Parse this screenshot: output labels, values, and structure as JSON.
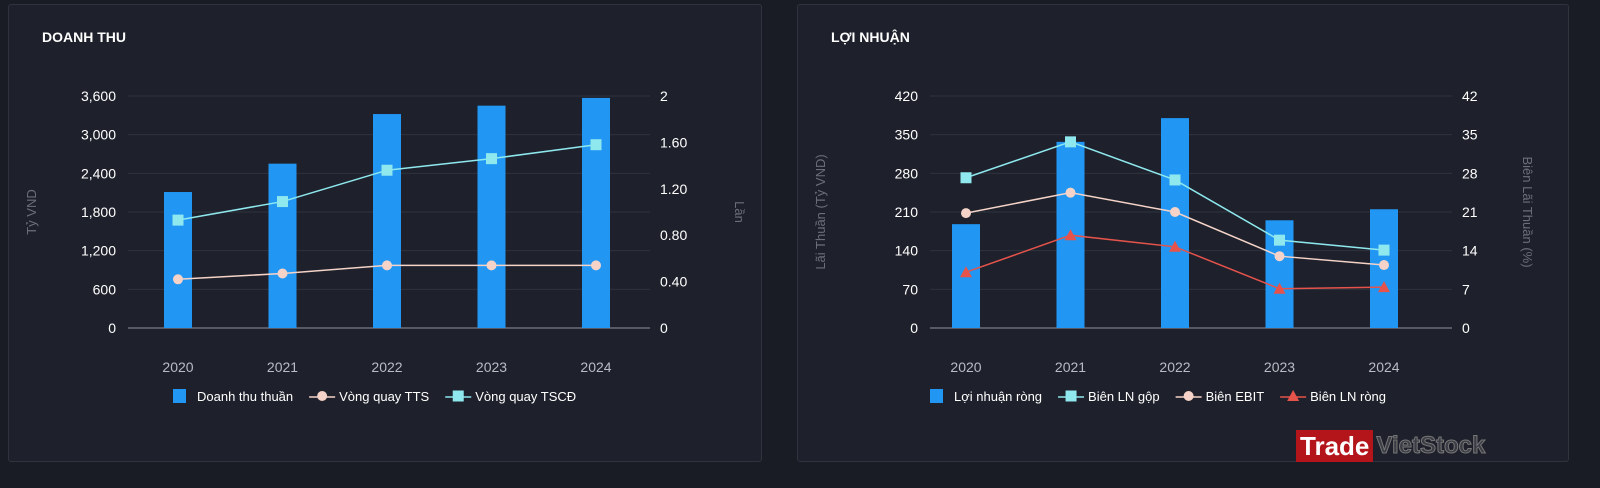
{
  "chart_data": [
    {
      "type": "bar",
      "title": "DOANH THU",
      "categories": [
        "2020",
        "2021",
        "2022",
        "2023",
        "2024"
      ],
      "ylabel": "Tỷ VND",
      "y2label": "Lần",
      "ylim": [
        0,
        3600
      ],
      "y2lim": [
        0,
        2
      ],
      "yticks": [
        "0",
        "600",
        "1,200",
        "1,800",
        "2,400",
        "3,000",
        "3,600"
      ],
      "y2ticks": [
        "0",
        "0.40",
        "0.80",
        "1.20",
        "1.60",
        "2"
      ],
      "grid": true,
      "legend": "bottom",
      "series": [
        {
          "name": "Doanh thu thuần",
          "kind": "bar",
          "axis": "left",
          "color": "#2196f3",
          "values": [
            2110,
            2550,
            3320,
            3450,
            3570
          ]
        },
        {
          "name": "Vòng quay TTS",
          "kind": "line",
          "marker": "circle",
          "axis": "right",
          "color": "#f5d3c8",
          "values": [
            0.42,
            0.47,
            0.54,
            0.54,
            0.54
          ]
        },
        {
          "name": "Vòng quay TSCĐ",
          "kind": "line",
          "marker": "square",
          "axis": "right",
          "color": "#8ee8ee",
          "values": [
            0.93,
            1.09,
            1.36,
            1.46,
            1.58
          ]
        }
      ]
    },
    {
      "type": "bar",
      "title": "LỢI NHUẬN",
      "categories": [
        "2020",
        "2021",
        "2022",
        "2023",
        "2024"
      ],
      "ylabel": "Lãi Thuần (Tỷ VND)",
      "y2label": "Biên Lãi Thuần (%)",
      "ylim": [
        0,
        420
      ],
      "y2lim": [
        0,
        42
      ],
      "yticks": [
        "0",
        "70",
        "140",
        "210",
        "280",
        "350",
        "420"
      ],
      "y2ticks": [
        "0",
        "7",
        "14",
        "21",
        "28",
        "35",
        "42"
      ],
      "grid": true,
      "legend": "bottom",
      "series": [
        {
          "name": "Lợi nhuận ròng",
          "kind": "bar",
          "axis": "left",
          "color": "#2196f3",
          "values": [
            188,
            337,
            380,
            195,
            215
          ]
        },
        {
          "name": "Biên LN gộp",
          "kind": "line",
          "marker": "square",
          "axis": "right",
          "color": "#8ee8ee",
          "values": [
            27.2,
            33.7,
            26.8,
            15.9,
            14.1
          ]
        },
        {
          "name": "Biên EBIT",
          "kind": "line",
          "marker": "circle",
          "axis": "right",
          "color": "#f5d3c8",
          "values": [
            20.8,
            24.5,
            21.0,
            13.0,
            11.4
          ]
        },
        {
          "name": "Biên LN ròng",
          "kind": "line",
          "marker": "triangle",
          "axis": "right",
          "color": "#e5534b",
          "values": [
            10.1,
            16.8,
            14.7,
            7.1,
            7.4
          ]
        }
      ]
    }
  ],
  "logo": {
    "part1": "Trade",
    "part2": "VietStock"
  }
}
